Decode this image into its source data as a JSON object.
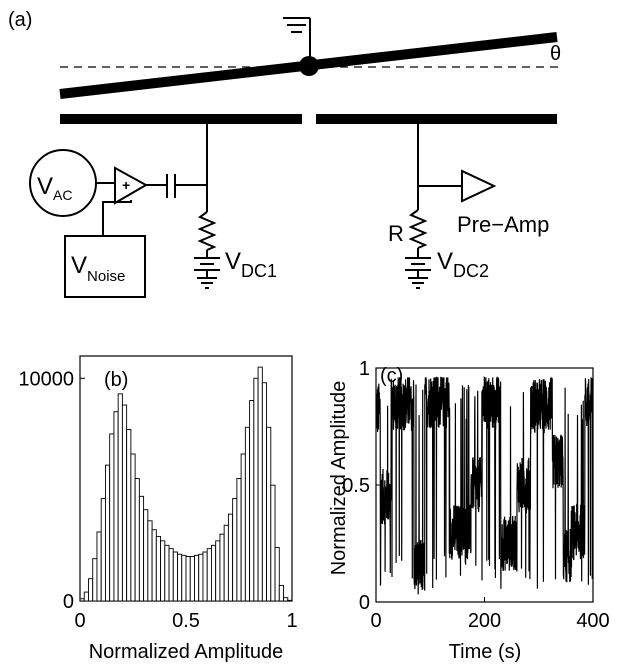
{
  "panel_a": {
    "label": "(a)",
    "angle_symbol": "θ",
    "vac": {
      "main": "V",
      "sub": "AC"
    },
    "vnoise": {
      "main": "V",
      "sub": "Noise"
    },
    "amp_sign": "+",
    "vdc1": {
      "main": "V",
      "sub": "DC1"
    },
    "vdc2": {
      "main": "V",
      "sub": "DC2"
    },
    "resistor_label": "R",
    "preamp_label": "Pre−Amp"
  },
  "chart_data": [
    {
      "type": "bar",
      "panel_label": "(b)",
      "xlabel": "Normalized Amplitude",
      "ylabel": "",
      "xlim": [
        0,
        1
      ],
      "ylim": [
        0,
        11000
      ],
      "xticks": [
        0,
        0.5,
        1
      ],
      "xtick_labels": [
        "0",
        "0.5",
        "1"
      ],
      "yticks": [
        0,
        10000
      ],
      "ytick_labels": [
        "0",
        "10000"
      ],
      "bin_width": 0.02,
      "bin_centers": [
        0.01,
        0.03,
        0.05,
        0.07,
        0.09,
        0.11,
        0.13,
        0.15,
        0.17,
        0.19,
        0.21,
        0.23,
        0.25,
        0.27,
        0.29,
        0.31,
        0.33,
        0.35,
        0.37,
        0.39,
        0.41,
        0.43,
        0.45,
        0.47,
        0.49,
        0.51,
        0.53,
        0.55,
        0.57,
        0.59,
        0.61,
        0.63,
        0.65,
        0.67,
        0.69,
        0.71,
        0.73,
        0.75,
        0.77,
        0.79,
        0.81,
        0.83,
        0.85,
        0.87,
        0.89,
        0.91,
        0.93,
        0.95,
        0.97,
        0.99
      ],
      "values": [
        100,
        400,
        1000,
        1900,
        3100,
        4600,
        6100,
        7500,
        8500,
        9300,
        8800,
        7700,
        6600,
        5500,
        4700,
        4100,
        3600,
        3200,
        2900,
        2700,
        2500,
        2350,
        2200,
        2100,
        2050,
        2000,
        2000,
        2050,
        2100,
        2200,
        2350,
        2500,
        2700,
        3000,
        3400,
        3900,
        4600,
        5500,
        6600,
        7800,
        9000,
        10000,
        10500,
        9800,
        7800,
        5200,
        2400,
        700,
        150,
        30
      ]
    },
    {
      "type": "line",
      "panel_label": "(c)",
      "xlabel": "Time (s)",
      "ylabel": "Normalized Amplitude",
      "xlim": [
        0,
        400
      ],
      "ylim": [
        0,
        1
      ],
      "xticks": [
        0,
        200,
        400
      ],
      "xtick_labels": [
        "0",
        "200",
        "400"
      ],
      "yticks": [
        0,
        0.5,
        1
      ],
      "ytick_labels": [
        "0",
        "0.5",
        "1"
      ],
      "states": [
        {
          "t_start": 0,
          "t_end": 8,
          "level": 0.82
        },
        {
          "t_start": 8,
          "t_end": 28,
          "level": 0.45
        },
        {
          "t_start": 28,
          "t_end": 70,
          "level": 0.85
        },
        {
          "t_start": 70,
          "t_end": 90,
          "level": 0.15
        },
        {
          "t_start": 90,
          "t_end": 135,
          "level": 0.86
        },
        {
          "t_start": 135,
          "t_end": 175,
          "level": 0.3
        },
        {
          "t_start": 175,
          "t_end": 195,
          "level": 0.5
        },
        {
          "t_start": 195,
          "t_end": 230,
          "level": 0.85
        },
        {
          "t_start": 230,
          "t_end": 260,
          "level": 0.25
        },
        {
          "t_start": 260,
          "t_end": 285,
          "level": 0.5
        },
        {
          "t_start": 285,
          "t_end": 325,
          "level": 0.84
        },
        {
          "t_start": 325,
          "t_end": 345,
          "level": 0.6
        },
        {
          "t_start": 345,
          "t_end": 360,
          "level": 0.2
        },
        {
          "t_start": 360,
          "t_end": 385,
          "level": 0.3
        },
        {
          "t_start": 385,
          "t_end": 400,
          "level": 0.85
        }
      ],
      "noise_amplitude": 0.12
    }
  ]
}
